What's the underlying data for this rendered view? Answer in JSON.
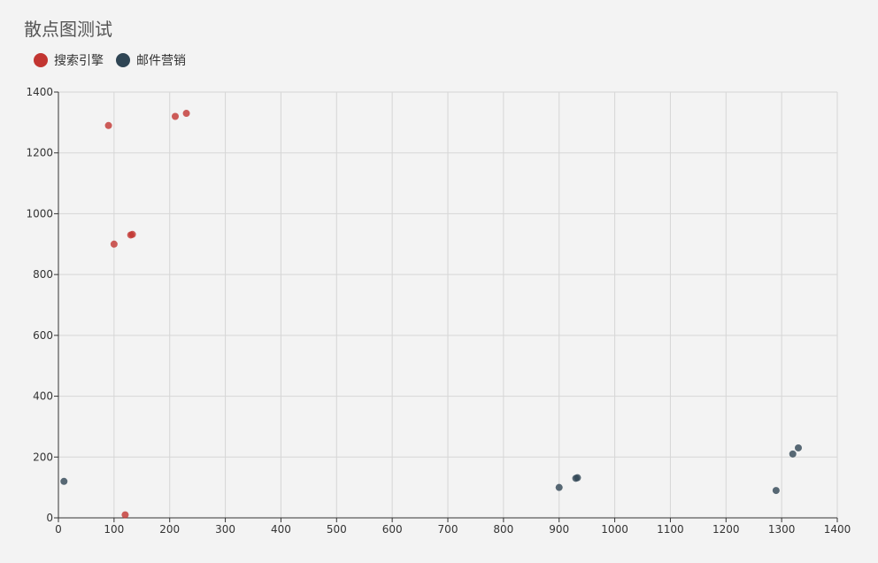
{
  "chart_data": {
    "type": "scatter",
    "title": "散点图测试",
    "xlim": [
      0,
      1400
    ],
    "ylim": [
      0,
      1400
    ],
    "xticks": [
      0,
      100,
      200,
      300,
      400,
      500,
      600,
      700,
      800,
      900,
      1000,
      1100,
      1200,
      1300,
      1400
    ],
    "yticks": [
      0,
      200,
      400,
      600,
      800,
      1000,
      1200,
      1400
    ],
    "grid": true,
    "legend_position": "top-left",
    "series": [
      {
        "name": "搜索引擎",
        "color": "#c23531",
        "points": [
          [
            90,
            1290
          ],
          [
            100,
            900
          ],
          [
            120,
            10
          ],
          [
            130,
            930
          ],
          [
            133,
            932
          ],
          [
            210,
            1320
          ],
          [
            230,
            1330
          ]
        ]
      },
      {
        "name": "邮件营销",
        "color": "#2f4554",
        "points": [
          [
            10,
            120
          ],
          [
            900,
            100
          ],
          [
            930,
            130
          ],
          [
            933,
            132
          ],
          [
            1290,
            90
          ],
          [
            1320,
            210
          ],
          [
            1330,
            230
          ]
        ]
      }
    ]
  }
}
